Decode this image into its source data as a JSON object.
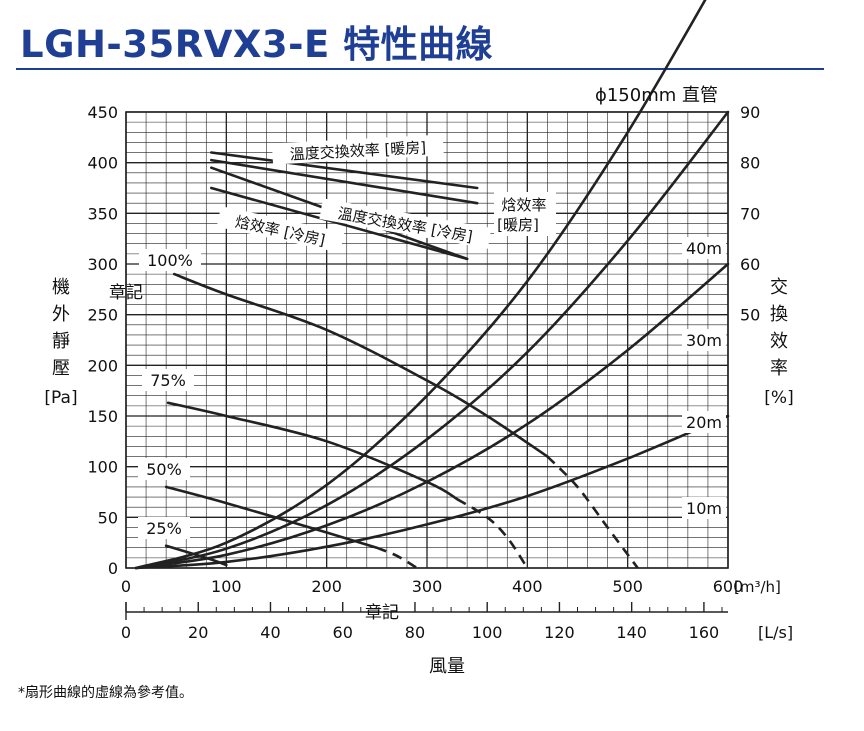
{
  "page": {
    "title": "LGH-35RVX3-E 特性曲線",
    "footnote": "*扇形曲線的虛線為參考值。"
  },
  "chart_data": {
    "type": "line",
    "title": "LGH-35RVX3-E 特性曲線",
    "subtitle": "ϕ150mm 直管",
    "xlabel": "風量",
    "x_units": "[m³/h]",
    "x2_units": "[L/s]",
    "ylabel": "機外靜壓",
    "y_units": "[Pa]",
    "y2label": "交換效率",
    "y2_units": "[%]",
    "xlim": [
      0,
      600
    ],
    "ylim": [
      0,
      450
    ],
    "y2lim": [
      0,
      90
    ],
    "x_ticks": [
      0,
      100,
      200,
      300,
      400,
      500,
      600
    ],
    "x_tick_labels": [
      "0",
      "100",
      "200",
      "300",
      "400",
      "500",
      "600"
    ],
    "x2_ticks": [
      0,
      20,
      40,
      60,
      80,
      100,
      120,
      140,
      160
    ],
    "y_ticks": [
      0,
      50,
      100,
      150,
      200,
      250,
      300,
      350,
      400,
      450
    ],
    "y2_ticks": [
      50,
      60,
      70,
      80,
      90
    ],
    "grid": true,
    "marks": [
      "章記",
      "章記"
    ],
    "fan_curves": [
      {
        "name": "100%",
        "points": [
          [
            48,
            290
          ],
          [
            100,
            270
          ],
          [
            200,
            235
          ],
          [
            300,
            185
          ],
          [
            360,
            150
          ],
          [
            420,
            110
          ]
        ],
        "dashed_points": [
          [
            420,
            110
          ],
          [
            450,
            80
          ],
          [
            480,
            40
          ],
          [
            510,
            0
          ]
        ]
      },
      {
        "name": "75%",
        "points": [
          [
            42,
            163
          ],
          [
            100,
            150
          ],
          [
            200,
            125
          ],
          [
            300,
            85
          ],
          [
            330,
            68
          ]
        ],
        "dashed_points": [
          [
            330,
            68
          ],
          [
            360,
            50
          ],
          [
            380,
            30
          ],
          [
            400,
            0
          ]
        ]
      },
      {
        "name": "50%",
        "points": [
          [
            40,
            80
          ],
          [
            100,
            64
          ],
          [
            200,
            35
          ],
          [
            250,
            20
          ]
        ],
        "dashed_points": [
          [
            250,
            20
          ],
          [
            270,
            12
          ],
          [
            290,
            0
          ]
        ]
      },
      {
        "name": "25%",
        "points": [
          [
            40,
            22
          ],
          [
            80,
            10
          ],
          [
            100,
            3
          ]
        ],
        "dashed_points": []
      }
    ],
    "duct_curves": [
      {
        "name": "40m",
        "points": [
          [
            10,
            0
          ],
          [
            100,
            25
          ],
          [
            200,
            82
          ],
          [
            300,
            170
          ],
          [
            400,
            283
          ],
          [
            500,
            430
          ],
          [
            600,
            600
          ]
        ]
      },
      {
        "name": "30m",
        "points": [
          [
            10,
            0
          ],
          [
            100,
            19
          ],
          [
            200,
            62
          ],
          [
            300,
            127
          ],
          [
            400,
            213
          ],
          [
            500,
            323
          ],
          [
            600,
            450
          ]
        ]
      },
      {
        "name": "20m",
        "points": [
          [
            10,
            0
          ],
          [
            100,
            13
          ],
          [
            200,
            42
          ],
          [
            300,
            85
          ],
          [
            400,
            142
          ],
          [
            500,
            215
          ],
          [
            600,
            300
          ]
        ]
      },
      {
        "name": "10m",
        "points": [
          [
            10,
            0
          ],
          [
            100,
            6
          ],
          [
            200,
            21
          ],
          [
            300,
            43
          ],
          [
            400,
            71
          ],
          [
            500,
            108
          ],
          [
            600,
            150
          ]
        ]
      }
    ],
    "efficiency_curves": [
      {
        "name": "溫度交換效率 [暖房]",
        "points": [
          [
            85,
            82
          ],
          [
            350,
            75
          ]
        ]
      },
      {
        "name": "焓效率 [暖房]",
        "points": [
          [
            85,
            80.5
          ],
          [
            350,
            72
          ]
        ]
      },
      {
        "name": "溫度交換效率 [冷房]",
        "points": [
          [
            85,
            79
          ],
          [
            340,
            61
          ]
        ]
      },
      {
        "name": "焓效率 [冷房]",
        "points": [
          [
            85,
            75
          ],
          [
            340,
            61
          ]
        ]
      }
    ],
    "colors": {
      "title": "#1f3f95",
      "line": "#222222",
      "grid": "#222222"
    }
  }
}
